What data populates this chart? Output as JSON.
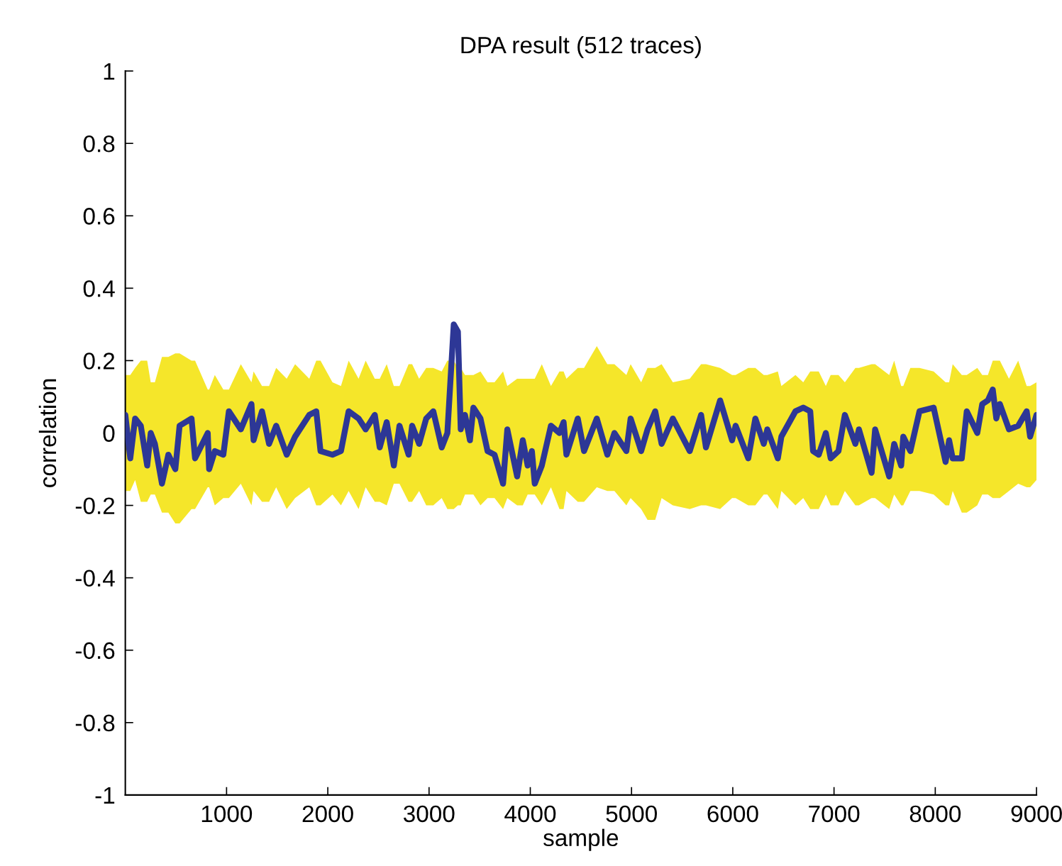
{
  "chart_data": {
    "type": "line",
    "title": "DPA result (512 traces)",
    "xlabel": "sample",
    "ylabel": "correlation",
    "xlim": [
      0,
      9000
    ],
    "xticks": [
      1000,
      2000,
      3000,
      4000,
      5000,
      6000,
      7000,
      8000,
      9000
    ],
    "ylim": [
      -1,
      1
    ],
    "yticks": [
      -1,
      -0.8,
      -0.6,
      -0.4,
      -0.2,
      0,
      0.2,
      0.4,
      0.6,
      0.8,
      1
    ],
    "grid": false,
    "line_style": "solid",
    "marker": "none",
    "series": [
      {
        "color": "#2d3796",
        "x": [
          0,
          49,
          97,
          153,
          216,
          251,
          292,
          362,
          425,
          494,
          536,
          654,
          689,
          814,
          828,
          884,
          968,
          1023,
          1141,
          1246,
          1267,
          1350,
          1420,
          1490,
          1594,
          1677,
          1817,
          1886,
          1928,
          2046,
          2130,
          2206,
          2304,
          2374,
          2464,
          2513,
          2582,
          2652,
          2708,
          2798,
          2833,
          2902,
          2972,
          3042,
          3125,
          3181,
          3244,
          3285,
          3313,
          3355,
          3404,
          3438,
          3508,
          3578,
          3647,
          3731,
          3773,
          3870,
          3926,
          3974,
          4016,
          4044,
          4114,
          4204,
          4288,
          4329,
          4357,
          4469,
          4531,
          4657,
          4761,
          4831,
          4949,
          4991,
          5095,
          5158,
          5234,
          5297,
          5408,
          5575,
          5687,
          5735,
          5875,
          5993,
          6028,
          6153,
          6223,
          6306,
          6341,
          6445,
          6480,
          6619,
          6696,
          6765,
          6793,
          6849,
          6919,
          6967,
          7044,
          7107,
          7211,
          7246,
          7371,
          7406,
          7545,
          7594,
          7663,
          7684,
          7754,
          7844,
          7984,
          8102,
          8137,
          8172,
          8262,
          8311,
          8415,
          8464,
          8520,
          8568,
          8603,
          8638,
          8728,
          8819,
          8903,
          8937,
          9000
        ],
        "values": [
          0.05,
          -0.07,
          0.04,
          0.02,
          -0.09,
          0.0,
          -0.03,
          -0.14,
          -0.06,
          -0.1,
          0.02,
          0.04,
          -0.07,
          0.0,
          -0.1,
          -0.05,
          -0.06,
          0.06,
          0.01,
          0.08,
          -0.02,
          0.06,
          -0.03,
          0.02,
          -0.06,
          -0.01,
          0.05,
          0.06,
          -0.05,
          -0.06,
          -0.05,
          0.06,
          0.04,
          0.01,
          0.05,
          -0.04,
          0.03,
          -0.09,
          0.02,
          -0.06,
          0.02,
          -0.03,
          0.04,
          0.06,
          -0.04,
          0.0,
          0.3,
          0.28,
          0.01,
          0.05,
          -0.02,
          0.07,
          0.04,
          -0.05,
          -0.06,
          -0.14,
          0.01,
          -0.12,
          -0.02,
          -0.09,
          -0.05,
          -0.14,
          -0.09,
          0.02,
          0.0,
          0.03,
          -0.06,
          0.04,
          -0.05,
          0.04,
          -0.06,
          0.0,
          -0.05,
          0.04,
          -0.05,
          0.01,
          0.06,
          -0.03,
          0.04,
          -0.05,
          0.05,
          -0.04,
          0.09,
          -0.02,
          0.02,
          -0.07,
          0.04,
          -0.03,
          0.01,
          -0.07,
          -0.01,
          0.06,
          0.07,
          0.06,
          -0.05,
          -0.06,
          0.0,
          -0.07,
          -0.05,
          0.05,
          -0.03,
          0.01,
          -0.11,
          0.01,
          -0.12,
          -0.03,
          -0.09,
          -0.01,
          -0.05,
          0.06,
          0.07,
          -0.08,
          -0.02,
          -0.07,
          -0.07,
          0.06,
          0.0,
          0.08,
          0.09,
          0.12,
          0.04,
          0.08,
          0.01,
          0.02,
          0.06,
          -0.01,
          0.05
        ],
        "upper": [
          0.16,
          0.16,
          0.18,
          0.2,
          0.2,
          0.14,
          0.14,
          0.21,
          0.21,
          0.22,
          0.22,
          0.2,
          0.2,
          0.12,
          0.12,
          0.16,
          0.12,
          0.12,
          0.19,
          0.14,
          0.17,
          0.13,
          0.13,
          0.18,
          0.15,
          0.19,
          0.15,
          0.2,
          0.2,
          0.14,
          0.13,
          0.2,
          0.15,
          0.2,
          0.15,
          0.15,
          0.19,
          0.13,
          0.13,
          0.19,
          0.19,
          0.15,
          0.18,
          0.18,
          0.17,
          0.2,
          0.2,
          0.18,
          0.18,
          0.16,
          0.16,
          0.16,
          0.17,
          0.14,
          0.14,
          0.17,
          0.13,
          0.15,
          0.15,
          0.15,
          0.15,
          0.15,
          0.19,
          0.13,
          0.17,
          0.17,
          0.15,
          0.18,
          0.18,
          0.24,
          0.19,
          0.19,
          0.16,
          0.19,
          0.14,
          0.18,
          0.18,
          0.19,
          0.14,
          0.15,
          0.19,
          0.19,
          0.18,
          0.16,
          0.16,
          0.18,
          0.18,
          0.16,
          0.16,
          0.17,
          0.13,
          0.16,
          0.14,
          0.17,
          0.17,
          0.17,
          0.13,
          0.16,
          0.16,
          0.14,
          0.18,
          0.18,
          0.19,
          0.19,
          0.16,
          0.2,
          0.13,
          0.13,
          0.18,
          0.18,
          0.17,
          0.14,
          0.14,
          0.19,
          0.16,
          0.16,
          0.18,
          0.16,
          0.16,
          0.2,
          0.2,
          0.2,
          0.15,
          0.2,
          0.13,
          0.13,
          0.14
        ],
        "lower": [
          -0.16,
          -0.16,
          -0.13,
          -0.19,
          -0.19,
          -0.17,
          -0.17,
          -0.22,
          -0.22,
          -0.25,
          -0.25,
          -0.21,
          -0.21,
          -0.15,
          -0.15,
          -0.2,
          -0.18,
          -0.18,
          -0.14,
          -0.2,
          -0.16,
          -0.19,
          -0.19,
          -0.15,
          -0.21,
          -0.18,
          -0.15,
          -0.2,
          -0.2,
          -0.17,
          -0.2,
          -0.16,
          -0.21,
          -0.15,
          -0.19,
          -0.19,
          -0.2,
          -0.14,
          -0.14,
          -0.19,
          -0.19,
          -0.16,
          -0.2,
          -0.2,
          -0.18,
          -0.21,
          -0.21,
          -0.2,
          -0.2,
          -0.17,
          -0.17,
          -0.17,
          -0.2,
          -0.18,
          -0.18,
          -0.21,
          -0.18,
          -0.2,
          -0.2,
          -0.17,
          -0.17,
          -0.17,
          -0.2,
          -0.15,
          -0.21,
          -0.21,
          -0.16,
          -0.19,
          -0.19,
          -0.15,
          -0.16,
          -0.16,
          -0.2,
          -0.18,
          -0.21,
          -0.24,
          -0.24,
          -0.18,
          -0.2,
          -0.21,
          -0.2,
          -0.2,
          -0.21,
          -0.18,
          -0.18,
          -0.2,
          -0.2,
          -0.17,
          -0.17,
          -0.21,
          -0.16,
          -0.2,
          -0.18,
          -0.21,
          -0.21,
          -0.21,
          -0.17,
          -0.2,
          -0.2,
          -0.16,
          -0.2,
          -0.2,
          -0.18,
          -0.18,
          -0.21,
          -0.17,
          -0.2,
          -0.2,
          -0.16,
          -0.16,
          -0.17,
          -0.2,
          -0.2,
          -0.16,
          -0.22,
          -0.22,
          -0.2,
          -0.17,
          -0.17,
          -0.18,
          -0.18,
          -0.18,
          -0.16,
          -0.14,
          -0.15,
          -0.15,
          -0.13
        ]
      }
    ]
  }
}
